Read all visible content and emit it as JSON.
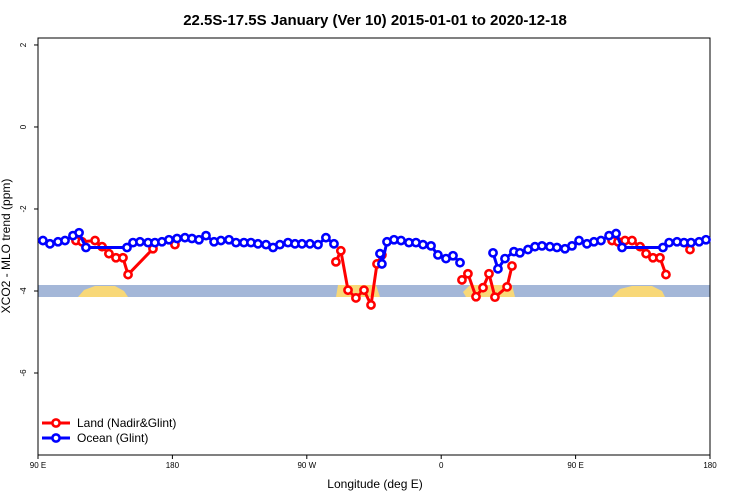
{
  "chart_data": {
    "type": "line",
    "title": "22.5S-17.5S January (Ver 10)   2015-01-01 to 2020-12-18",
    "x_label": "Longitude (deg E)",
    "y_label": "XCO2 - MLO trend (ppm)",
    "xlim": [
      90,
      540
    ],
    "xticks": [
      {
        "value": 90,
        "label": "90 E"
      },
      {
        "value": 180,
        "label": "180"
      },
      {
        "value": 270,
        "label": "90 W"
      },
      {
        "value": 360,
        "label": "0"
      },
      {
        "value": 450,
        "label": "90 E"
      },
      {
        "value": 540,
        "label": "180"
      }
    ],
    "ylim": [
      -8,
      2.17
    ],
    "yticks": [
      2,
      0,
      -2,
      -4,
      -6
    ],
    "legend": "bottom left",
    "series": [
      {
        "name": "Land (Nadir&Glint)",
        "color": "#ff0000",
        "x": [
          115.4,
          119.5,
          128.2,
          132.9,
          137.5,
          142.2,
          146.9,
          150.3,
          167.0,
          null,
          181.7,
          null,
          289.5,
          292.8,
          297.6,
          302.9,
          308.3,
          313.0,
          317.0,
          320.3,
          null,
          373.9,
          377.9,
          383.3,
          388.0,
          392.0,
          396.0,
          404.1,
          407.4,
          null,
          474.4,
          478.4,
          483.1,
          487.8,
          493.2,
          497.2,
          501.8,
          506.5,
          510.5,
          null,
          526.6
        ],
        "values": [
          -2.77,
          -2.8,
          -2.77,
          -2.92,
          -3.09,
          -3.19,
          -3.19,
          -3.6,
          -2.97,
          null,
          -2.87,
          null,
          -3.29,
          -3.02,
          -3.98,
          -4.17,
          -3.98,
          -4.34,
          -3.34,
          -3.12,
          null,
          -3.73,
          -3.58,
          -4.14,
          -3.92,
          -3.58,
          -4.15,
          -3.9,
          -3.39,
          null,
          -2.77,
          -2.8,
          -2.77,
          -2.77,
          -2.92,
          -3.09,
          -3.19,
          -3.19,
          -3.6,
          null,
          -2.99
        ]
      },
      {
        "name": "Ocean (Glint)",
        "color": "#0000ff",
        "x": [
          93.3,
          98.0,
          103.4,
          108.1,
          113.4,
          117.5,
          122.1,
          149.6,
          153.6,
          158.3,
          163.7,
          168.3,
          173.0,
          177.7,
          183.1,
          188.4,
          193.1,
          197.8,
          202.5,
          207.9,
          212.5,
          217.9,
          222.6,
          227.9,
          232.6,
          237.3,
          242.7,
          247.4,
          252.0,
          257.4,
          262.1,
          266.8,
          272.1,
          277.5,
          282.8,
          288.2,
          null,
          319.0,
          320.3,
          323.7,
          328.4,
          333.1,
          338.4,
          343.1,
          347.8,
          353.2,
          357.8,
          363.2,
          367.9,
          372.6,
          null,
          394.7,
          398.0,
          402.7,
          408.7,
          412.7,
          418.1,
          422.8,
          427.5,
          432.8,
          437.5,
          442.9,
          447.6,
          452.3,
          457.6,
          462.3,
          467.0,
          472.4,
          477.1,
          481.1,
          508.5,
          512.6,
          517.9,
          522.6,
          527.3,
          532.7,
          537.3
        ],
        "values": [
          -2.77,
          -2.85,
          -2.8,
          -2.77,
          -2.65,
          -2.58,
          -2.94,
          -2.94,
          -2.82,
          -2.8,
          -2.82,
          -2.82,
          -2.8,
          -2.75,
          -2.72,
          -2.7,
          -2.72,
          -2.75,
          -2.65,
          -2.8,
          -2.77,
          -2.75,
          -2.82,
          -2.82,
          -2.82,
          -2.85,
          -2.87,
          -2.94,
          -2.87,
          -2.82,
          -2.85,
          -2.85,
          -2.85,
          -2.87,
          -2.7,
          -2.85,
          null,
          -3.09,
          -3.34,
          -2.8,
          -2.75,
          -2.77,
          -2.82,
          -2.82,
          -2.87,
          -2.9,
          -3.12,
          -3.21,
          -3.14,
          -3.31,
          null,
          -3.07,
          -3.46,
          -3.21,
          -3.04,
          -3.07,
          -2.99,
          -2.92,
          -2.9,
          -2.92,
          -2.94,
          -2.97,
          -2.9,
          -2.77,
          -2.85,
          -2.8,
          -2.77,
          -2.65,
          -2.6,
          -2.94,
          -2.94,
          -2.82,
          -2.8,
          -2.82,
          -2.82,
          -2.8,
          -2.75
        ]
      }
    ]
  }
}
